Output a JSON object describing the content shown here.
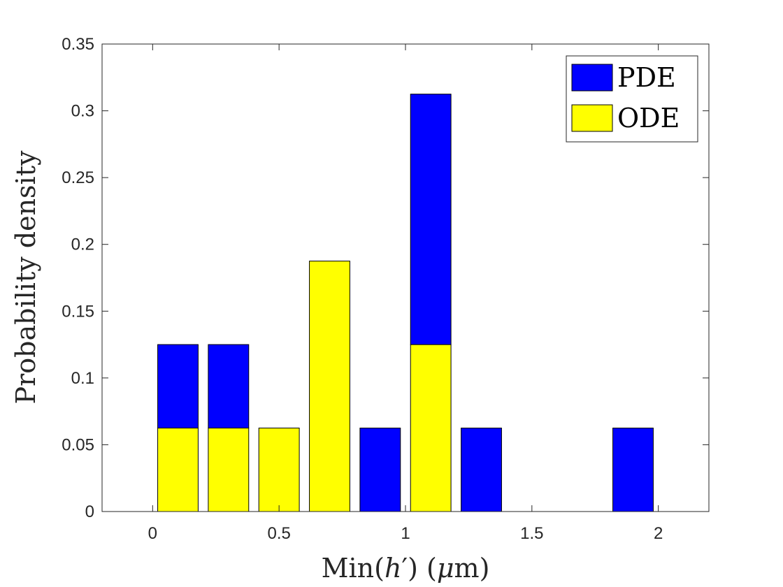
{
  "chart_data": {
    "type": "bar",
    "stacked": true,
    "categories": [
      0.1,
      0.3,
      0.5,
      0.7,
      0.9,
      1.1,
      1.3,
      1.9
    ],
    "series": [
      {
        "name": "ODE",
        "color": "#FFFF00",
        "values": [
          0.0625,
          0.0625,
          0.0625,
          0.1875,
          0,
          0.125,
          0,
          0
        ]
      },
      {
        "name": "PDE",
        "color": "#0000FF",
        "values": [
          0.0625,
          0.0625,
          0,
          0,
          0.0625,
          0.1875,
          0.0625,
          0.0625
        ]
      }
    ],
    "bar_width": 0.16,
    "xlabel": "Min(h′) (μm)",
    "xlabel_parts": {
      "pre": "Min(",
      "var": "h",
      "prime": "′",
      "mid": ") (",
      "mu": "μ",
      "post": "m)"
    },
    "ylabel": "Probability density",
    "xlim": [
      -0.2,
      2.2
    ],
    "ylim": [
      0,
      0.35
    ],
    "xticks": [
      0,
      0.5,
      1,
      1.5,
      2
    ],
    "xtick_labels": [
      "0",
      "0.5",
      "1",
      "1.5",
      "2"
    ],
    "yticks": [
      0,
      0.05,
      0.1,
      0.15,
      0.2,
      0.25,
      0.3,
      0.35
    ],
    "ytick_labels": [
      "0",
      "0.05",
      "0.1",
      "0.15",
      "0.2",
      "0.25",
      "0.3",
      "0.35"
    ],
    "legend": {
      "position": "top-right",
      "entries": [
        "PDE",
        "ODE"
      ]
    },
    "grid": false
  }
}
